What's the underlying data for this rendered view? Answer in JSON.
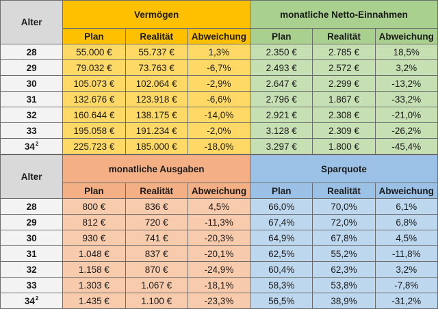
{
  "age_header": "Alter",
  "sub_headers": [
    "Plan",
    "Realität",
    "Abweichung"
  ],
  "top": {
    "ages": [
      {
        "value": "28",
        "sup": ""
      },
      {
        "value": "29",
        "sup": ""
      },
      {
        "value": "30",
        "sup": ""
      },
      {
        "value": "31",
        "sup": ""
      },
      {
        "value": "32",
        "sup": ""
      },
      {
        "value": "33",
        "sup": ""
      },
      {
        "value": "34",
        "sup": "2"
      }
    ],
    "groups": [
      {
        "title": "Vermögen",
        "header_color": "#ffc000",
        "cell_color": "#ffd966",
        "rows": [
          [
            "55.000 €",
            "55.737 €",
            "1,3%"
          ],
          [
            "79.032 €",
            "73.763 €",
            "-6,7%"
          ],
          [
            "105.073 €",
            "102.064 €",
            "-2,9%"
          ],
          [
            "132.676 €",
            "123.918 €",
            "-6,6%"
          ],
          [
            "160.644 €",
            "138.175 €",
            "-14,0%"
          ],
          [
            "195.058 €",
            "191.234 €",
            "-2,0%"
          ],
          [
            "225.723 €",
            "185.000 €",
            "-18,0%"
          ]
        ]
      },
      {
        "title": "monatliche Netto-Einnahmen",
        "header_color": "#a9d08e",
        "cell_color": "#c6e0b4",
        "rows": [
          [
            "2.350 €",
            "2.785 €",
            "18,5%"
          ],
          [
            "2.493 €",
            "2.572 €",
            "3,2%"
          ],
          [
            "2.647 €",
            "2.299 €",
            "-13,2%"
          ],
          [
            "2.796 €",
            "1.867 €",
            "-33,2%"
          ],
          [
            "2.921 €",
            "2.308 €",
            "-21,0%"
          ],
          [
            "3.128 €",
            "2.309 €",
            "-26,2%"
          ],
          [
            "3.297 €",
            "1.800 €",
            "-45,4%"
          ]
        ]
      }
    ]
  },
  "bottom": {
    "ages": [
      {
        "value": "28",
        "sup": ""
      },
      {
        "value": "29",
        "sup": ""
      },
      {
        "value": "30",
        "sup": ""
      },
      {
        "value": "31",
        "sup": ""
      },
      {
        "value": "32",
        "sup": ""
      },
      {
        "value": "33",
        "sup": ""
      },
      {
        "value": "34",
        "sup": "2"
      }
    ],
    "groups": [
      {
        "title": "monatliche Ausgaben",
        "header_color": "#f4b084",
        "cell_color": "#f8cbad",
        "rows": [
          [
            "800 €",
            "836 €",
            "4,5%"
          ],
          [
            "812 €",
            "720 €",
            "-11,3%"
          ],
          [
            "930 €",
            "741 €",
            "-20,3%"
          ],
          [
            "1.048 €",
            "837 €",
            "-20,1%"
          ],
          [
            "1.158 €",
            "870 €",
            "-24,9%"
          ],
          [
            "1.303 €",
            "1.067 €",
            "-18,1%"
          ],
          [
            "1.435 €",
            "1.100 €",
            "-23,3%"
          ]
        ]
      },
      {
        "title": "Sparquote",
        "header_color": "#9bc2e6",
        "cell_color": "#bdd7ee",
        "rows": [
          [
            "66,0%",
            "70,0%",
            "6,1%"
          ],
          [
            "67,4%",
            "72,0%",
            "6,8%"
          ],
          [
            "64,9%",
            "67,8%",
            "4,5%"
          ],
          [
            "62,5%",
            "55,2%",
            "-11,8%"
          ],
          [
            "60,4%",
            "62,3%",
            "3,2%"
          ],
          [
            "58,3%",
            "53,8%",
            "-7,8%"
          ],
          [
            "56,5%",
            "38,9%",
            "-31,2%"
          ]
        ]
      }
    ]
  }
}
